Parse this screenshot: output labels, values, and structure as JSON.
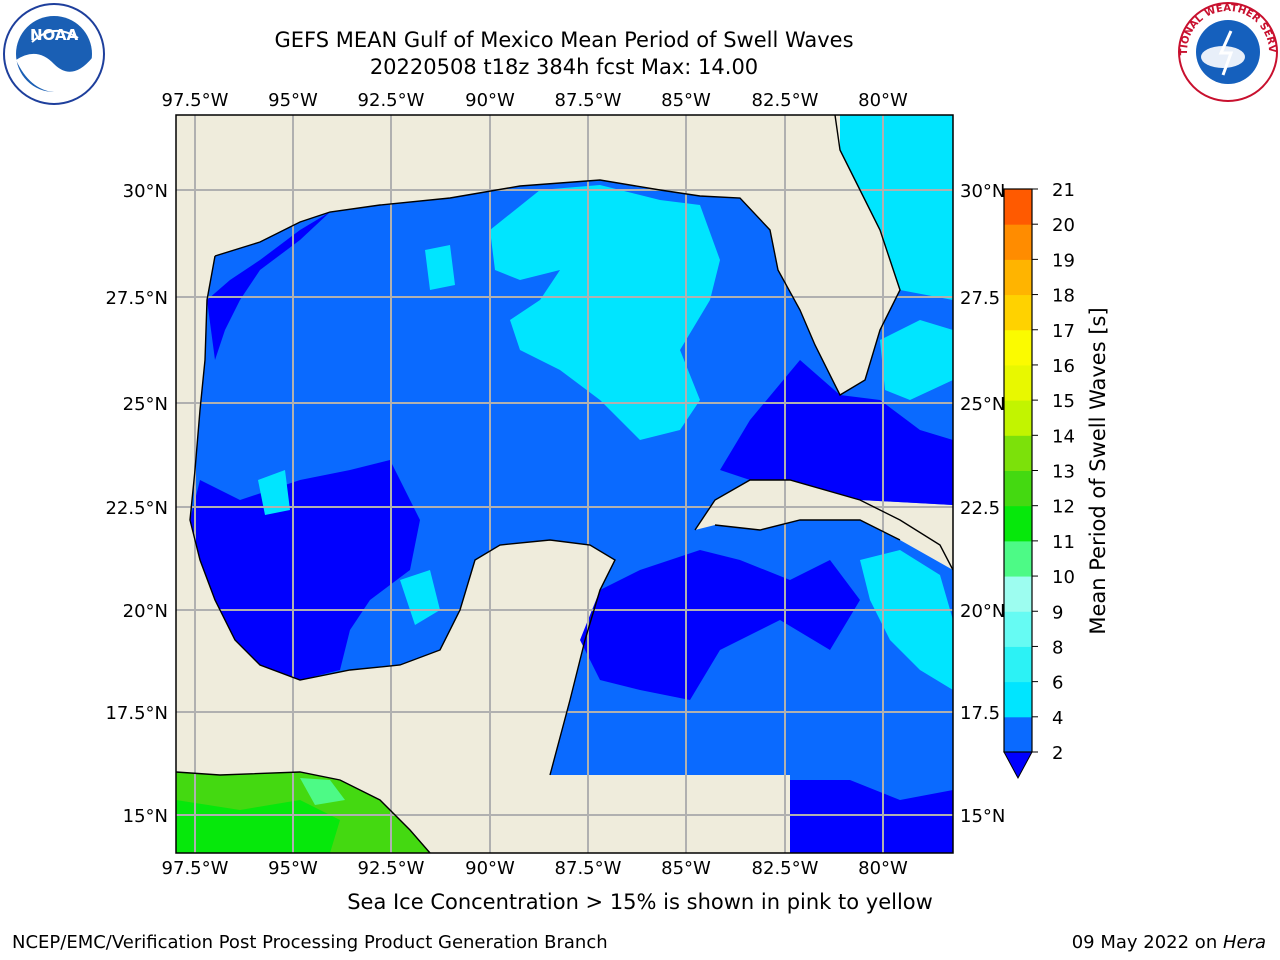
{
  "title_line1": "GEFS MEAN Gulf of Mexico Mean Period of Swell Waves",
  "title_line2": "20220508 t18z 384h fcst   Max: 14.00",
  "map": {
    "lon_ticks": [
      "97.5°W",
      "95°W",
      "92.5°W",
      "90°W",
      "87.5°W",
      "85°W",
      "82.5°W",
      "80°W"
    ],
    "lat_ticks_left": [
      "30°N",
      "27.5°N",
      "25°N",
      "22.5°N",
      "20°N",
      "17.5°N",
      "15°N"
    ],
    "lat_ticks_right": [
      "30°N",
      "27.5",
      "25°N",
      "22.5",
      "20°N",
      "17.5",
      "15°N"
    ],
    "land_color": "#efecdc",
    "grid_color": "#b0b0b0"
  },
  "colorbar": {
    "label": "Mean Period of Swell Waves [s]",
    "ticks": [
      "2",
      "4",
      "6",
      "8",
      "9",
      "10",
      "11",
      "12",
      "13",
      "14",
      "15",
      "16",
      "17",
      "18",
      "19",
      "20",
      "21"
    ],
    "colors": [
      "#0a6aff",
      "#00e5ff",
      "#2cf2f5",
      "#66fbf3",
      "#9dfdf0",
      "#4dfa86",
      "#06e80b",
      "#44d911",
      "#7ce10a",
      "#c2f400",
      "#e8f800",
      "#fbfb00",
      "#ffd200",
      "#ffb400",
      "#ff8c00",
      "#ff5a00",
      "#ff2a00",
      "#ff0000"
    ],
    "under_color": "#0000ff"
  },
  "sea_ice_note": "Sea Ice Concentration > 15% is shown in pink to yellow",
  "footer": {
    "left": "NCEP/EMC/Verification Post Processing Product Generation Branch",
    "date": "09 May 2022 on ",
    "host": "Hera"
  },
  "logos": {
    "noaa_text": "NOAA",
    "nws_text": "NATIONAL WEATHER SERVICE"
  }
}
